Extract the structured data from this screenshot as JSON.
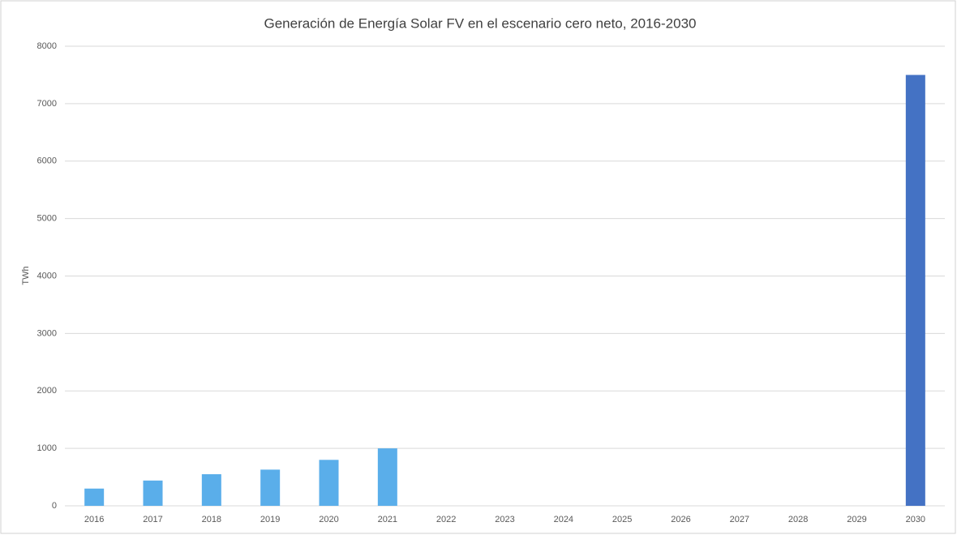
{
  "chart_data": {
    "type": "bar",
    "title": "Generación de Energía Solar FV en el escenario cero neto, 2016-2030",
    "y_label": "TWh",
    "categories": [
      "2016",
      "2017",
      "2018",
      "2019",
      "2020",
      "2021",
      "2022",
      "2023",
      "2024",
      "2025",
      "2026",
      "2027",
      "2028",
      "2029",
      "2030"
    ],
    "values": [
      300,
      440,
      550,
      630,
      800,
      1000,
      null,
      null,
      null,
      null,
      null,
      null,
      null,
      null,
      7500
    ],
    "colors": [
      "#5aaeea",
      "#5aaeea",
      "#5aaeea",
      "#5aaeea",
      "#5aaeea",
      "#5aaeea",
      "#5aaeea",
      "#5aaeea",
      "#5aaeea",
      "#5aaeea",
      "#5aaeea",
      "#5aaeea",
      "#5aaeea",
      "#5aaeea",
      "#4472c4"
    ],
    "ylim": [
      0,
      8000
    ],
    "yticks": [
      0,
      1000,
      2000,
      3000,
      4000,
      5000,
      6000,
      7000,
      8000
    ],
    "grid": true
  }
}
